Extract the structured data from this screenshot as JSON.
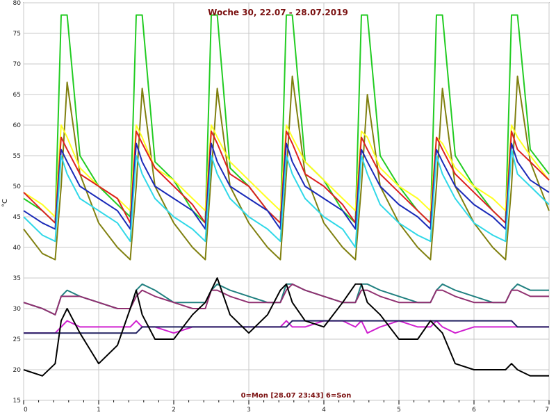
{
  "chart_data": {
    "type": "line",
    "title": "Woche 30, 22.07 - 28.07.2019",
    "footer": "0=Mon [28.07 23:43] 6=Son",
    "ylabel": "°C",
    "xlabel": "",
    "xlim": [
      0,
      7
    ],
    "ylim": [
      15,
      80
    ],
    "x_ticks": [
      "0",
      "1",
      "2",
      "3",
      "4",
      "5",
      "6",
      "7"
    ],
    "y_ticks": [
      "15",
      "20",
      "25",
      "30",
      "35",
      "40",
      "45",
      "50",
      "55",
      "60",
      "65",
      "70",
      "75",
      "80"
    ],
    "grid": true,
    "x": [
      0,
      0.25,
      0.42,
      0.5,
      0.58,
      0.75,
      1,
      1.25,
      1.42,
      1.5,
      1.58,
      1.75,
      2,
      2.25,
      2.42,
      2.5,
      2.58,
      2.75,
      3,
      3.25,
      3.42,
      3.5,
      3.58,
      3.75,
      4,
      4.25,
      4.42,
      4.5,
      4.58,
      4.75,
      5,
      5.25,
      5.42,
      5.5,
      5.58,
      5.75,
      6,
      6.25,
      6.42,
      6.5,
      6.58,
      6.75,
      7
    ],
    "series": [
      {
        "color": "#22cc22",
        "values": [
          48,
          46,
          44,
          78,
          78,
          55,
          50,
          47,
          45,
          78,
          78,
          54,
          51,
          46,
          44,
          78,
          78,
          53,
          50,
          46,
          44,
          78,
          78,
          54,
          51,
          46,
          44,
          78,
          78,
          55,
          50,
          46,
          44,
          78,
          78,
          55,
          50,
          46,
          44,
          78,
          78,
          56,
          52
        ]
      },
      {
        "color": "#808010",
        "values": [
          43,
          39,
          38,
          50,
          67,
          52,
          44,
          40,
          38,
          50,
          66,
          50,
          44,
          40,
          38,
          52,
          66,
          50,
          44,
          40,
          38,
          52,
          68,
          52,
          44,
          40,
          38,
          50,
          65,
          50,
          44,
          40,
          38,
          50,
          66,
          50,
          44,
          40,
          38,
          50,
          68,
          54,
          46
        ]
      },
      {
        "color": "#ffff22",
        "values": [
          49,
          47,
          45,
          60,
          58,
          53,
          50,
          48,
          46,
          60,
          58,
          53,
          51,
          48,
          46,
          60,
          58,
          54,
          51,
          48,
          46,
          60,
          58,
          54,
          51,
          48,
          46,
          59,
          58,
          53,
          50,
          48,
          46,
          58,
          57,
          53,
          50,
          48,
          46,
          60,
          58,
          55,
          51
        ]
      },
      {
        "color": "#dd2020",
        "values": [
          49,
          46,
          44,
          58,
          56,
          52,
          50,
          48,
          44,
          59,
          57,
          53,
          50,
          47,
          44,
          59,
          57,
          52,
          50,
          46,
          44,
          59,
          57,
          52,
          50,
          47,
          44,
          58,
          56,
          52,
          49,
          46,
          44,
          58,
          56,
          52,
          49,
          46,
          44,
          59,
          56,
          54,
          51
        ]
      },
      {
        "color": "#1a2ab8",
        "values": [
          46,
          44,
          43,
          56,
          54,
          50,
          48,
          46,
          43,
          57,
          54,
          50,
          48,
          46,
          43,
          57,
          54,
          50,
          48,
          46,
          43,
          57,
          54,
          50,
          48,
          46,
          43,
          56,
          54,
          50,
          47,
          45,
          43,
          56,
          54,
          50,
          47,
          45,
          43,
          57,
          54,
          51,
          49
        ]
      },
      {
        "color": "#30d8e8",
        "values": [
          45,
          42,
          41,
          55,
          52,
          48,
          46,
          44,
          41,
          55,
          52,
          48,
          45,
          43,
          41,
          55,
          52,
          48,
          45,
          43,
          41,
          55,
          52,
          48,
          45,
          43,
          40,
          55,
          52,
          47,
          44,
          42,
          41,
          55,
          52,
          48,
          44,
          42,
          41,
          56,
          52,
          50,
          47
        ]
      },
      {
        "color": "#208080",
        "values": [
          31,
          30,
          29,
          32,
          33,
          32,
          31,
          30,
          30,
          33,
          34,
          33,
          31,
          31,
          31,
          33,
          34,
          33,
          32,
          31,
          31,
          34,
          34,
          33,
          32,
          31,
          31,
          34,
          34,
          33,
          32,
          31,
          31,
          33,
          34,
          33,
          32,
          31,
          31,
          33,
          34,
          33,
          33
        ]
      },
      {
        "color": "#903070",
        "values": [
          31,
          30,
          29,
          32,
          32,
          32,
          31,
          30,
          30,
          32,
          33,
          32,
          31,
          30,
          30,
          33,
          33,
          32,
          31,
          31,
          31,
          33,
          34,
          33,
          32,
          31,
          31,
          33,
          33,
          32,
          31,
          31,
          31,
          33,
          33,
          32,
          31,
          31,
          31,
          33,
          33,
          32,
          32
        ]
      },
      {
        "color": "#d020d0",
        "values": [
          26,
          26,
          26,
          27,
          28,
          27,
          27,
          27,
          27,
          28,
          27,
          27,
          26,
          27,
          27,
          27,
          27,
          27,
          27,
          27,
          27,
          28,
          27,
          27,
          28,
          28,
          27,
          28,
          26,
          27,
          28,
          27,
          27,
          28,
          27,
          26,
          27,
          27,
          27,
          27,
          27,
          27,
          27
        ]
      },
      {
        "color": "#202060",
        "values": [
          26,
          26,
          26,
          26,
          26,
          26,
          26,
          26,
          26,
          26,
          27,
          27,
          27,
          27,
          27,
          27,
          27,
          27,
          27,
          27,
          27,
          27,
          28,
          28,
          28,
          28,
          28,
          28,
          28,
          28,
          28,
          28,
          28,
          28,
          28,
          28,
          28,
          28,
          28,
          28,
          27,
          27,
          27
        ]
      },
      {
        "color": "#000000",
        "values": [
          20,
          19,
          21,
          28,
          30,
          26,
          21,
          24,
          30,
          33,
          29,
          25,
          25,
          29,
          31,
          33,
          35,
          29,
          26,
          29,
          33,
          34,
          31,
          28,
          27,
          31,
          34,
          34,
          31,
          29,
          25,
          25,
          28,
          27,
          26,
          21,
          20,
          20,
          20,
          21,
          20,
          19,
          19
        ]
      }
    ]
  }
}
